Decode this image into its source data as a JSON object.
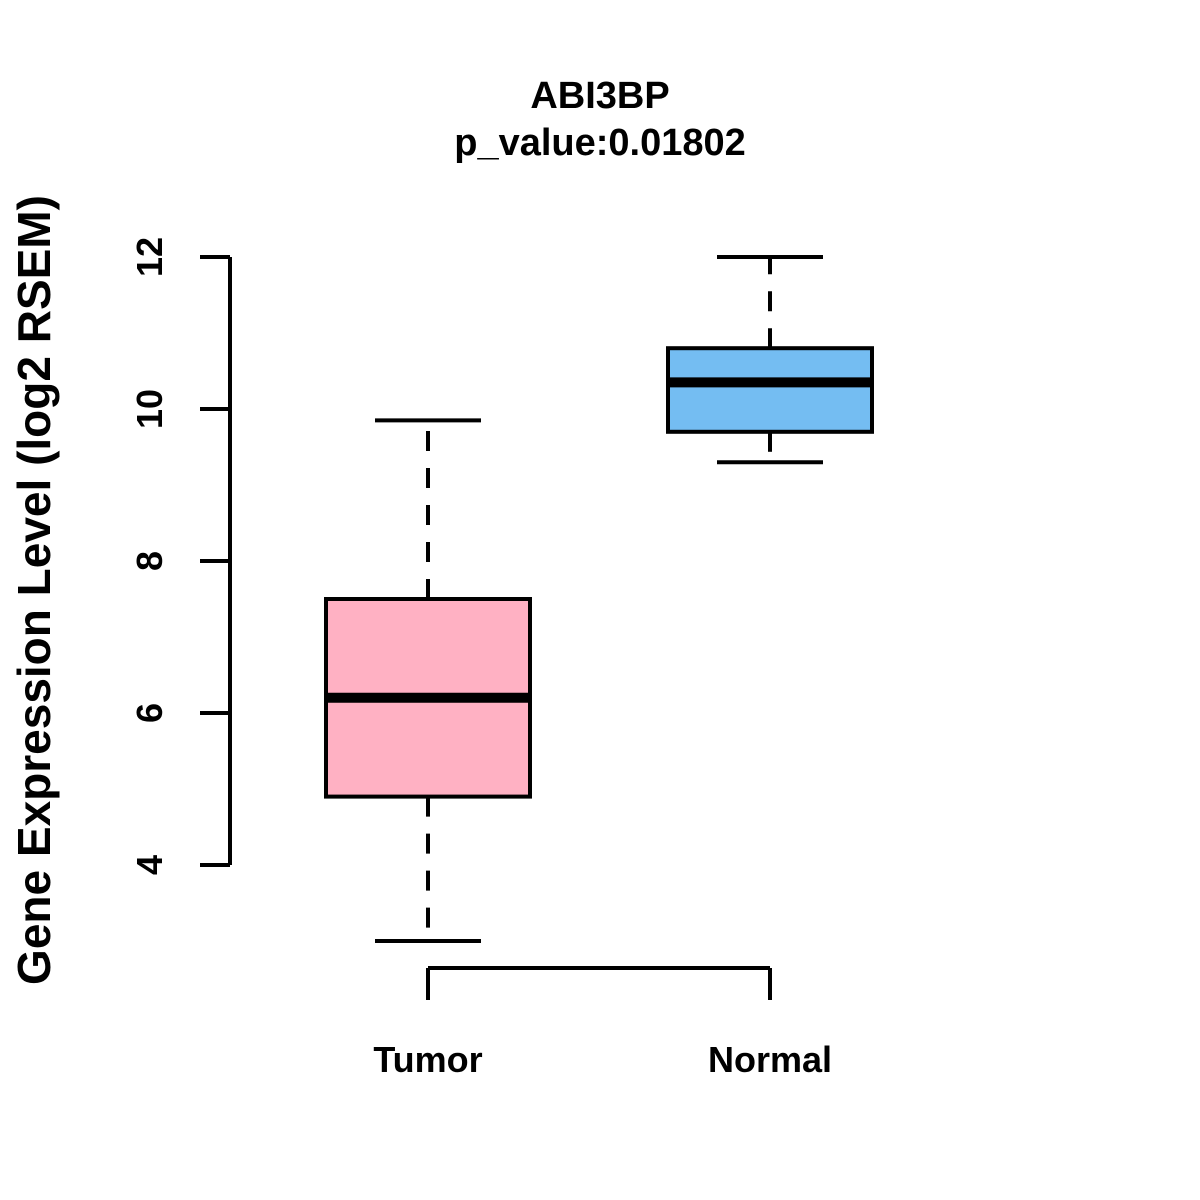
{
  "title": "ABI3BP",
  "subtitle": "p_value:0.01802",
  "chart_data": {
    "type": "boxplot",
    "title": "ABI3BP",
    "subtitle": "p_value:0.01802",
    "xlabel": "",
    "ylabel": "Gene Expression Level (log2 RSEM)",
    "ylim": [
      4,
      12
    ],
    "yticks": [
      4,
      6,
      8,
      10,
      12
    ],
    "grid": false,
    "legend": "none",
    "categories": [
      "Tumor",
      "Normal"
    ],
    "series": [
      {
        "name": "Tumor",
        "fill_color": "#FFB1C3",
        "whisker_low": 3.0,
        "q1": 4.9,
        "median": 6.2,
        "q3": 7.5,
        "whisker_high": 9.85,
        "outliers": []
      },
      {
        "name": "Normal",
        "fill_color": "#74BDF2",
        "whisker_low": 9.3,
        "q1": 9.7,
        "median": 10.35,
        "q3": 10.8,
        "whisker_high": 12.0,
        "outliers": []
      }
    ],
    "colors": {
      "stroke": "#000000",
      "background": "#FFFFFF"
    }
  }
}
